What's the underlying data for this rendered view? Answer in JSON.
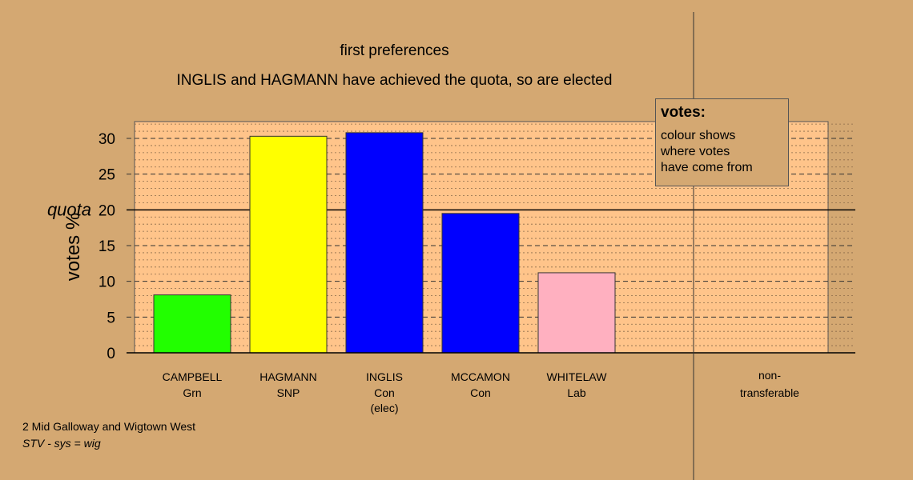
{
  "title": "first preferences",
  "subtitle": "INGLIS and HAGMANN have achieved the quota, so are elected",
  "footer": {
    "line1": "2 Mid Galloway and Wigtown West",
    "line2": "STV - sys = wig"
  },
  "legend": {
    "title": "votes:",
    "lines": [
      "colour shows",
      "where votes",
      "have come from"
    ]
  },
  "chart_data": {
    "type": "bar",
    "ylabel": "votes %",
    "ylim": [
      0,
      32
    ],
    "yticks": [
      0,
      5,
      10,
      15,
      20,
      25,
      30
    ],
    "quota": {
      "label": "quota",
      "value": 20
    },
    "grid": true,
    "categories": [
      {
        "name": "CAMPBELL",
        "party": "Grn",
        "extra": "",
        "value": 8.1,
        "color": "#22ff00"
      },
      {
        "name": "HAGMANN",
        "party": "SNP",
        "extra": "",
        "value": 30.3,
        "color": "#ffff00"
      },
      {
        "name": "INGLIS",
        "party": "Con",
        "extra": "(elec)",
        "value": 30.8,
        "color": "#0000ff"
      },
      {
        "name": "MCCAMON",
        "party": "Con",
        "extra": "",
        "value": 19.5,
        "color": "#0000ff"
      },
      {
        "name": "WHITELAW",
        "party": "Lab",
        "extra": "",
        "value": 11.2,
        "color": "#ffb0c0"
      }
    ],
    "nontransferable": {
      "label1": "non-",
      "label2": "transferable",
      "value": 0
    },
    "colors": {
      "background": "#d4a872",
      "plot_bg": "#ffc48a",
      "bar_border": "#333333"
    }
  }
}
